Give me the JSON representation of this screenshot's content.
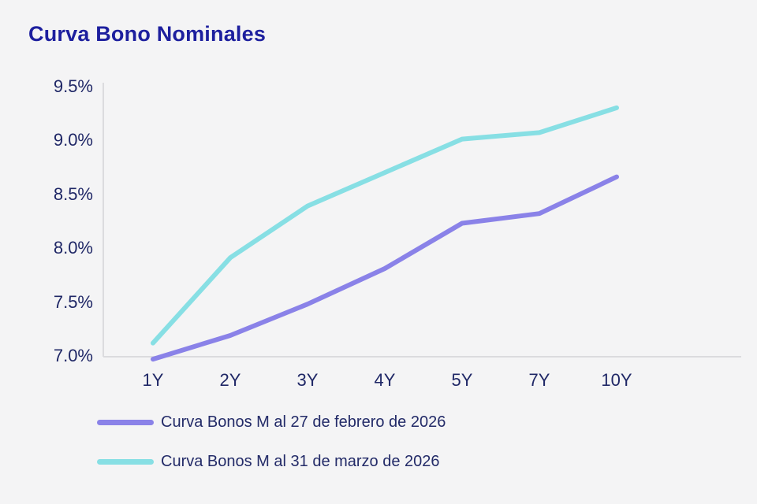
{
  "page": {
    "title": "Curva Bono Nominales"
  },
  "chart_data": {
    "type": "line",
    "title": "Curva Bono Nominales",
    "categories": [
      "1Y",
      "2Y",
      "3Y",
      "4Y",
      "5Y",
      "7Y",
      "10Y"
    ],
    "series": [
      {
        "name": "Curva Bonos M al 27 de febrero de 2026",
        "color": "#8a82e8",
        "values": [
          6.97,
          7.19,
          7.48,
          7.81,
          8.23,
          8.32,
          8.66
        ]
      },
      {
        "name": "Curva Bonos M al 31 de marzo de 2026",
        "color": "#87dfe4",
        "values": [
          7.12,
          7.91,
          8.39,
          8.7,
          9.01,
          9.07,
          9.3
        ]
      }
    ],
    "xlabel": "",
    "ylabel": "",
    "ylim": [
      7.0,
      9.5
    ],
    "y_ticks": [
      {
        "value": 7.0,
        "label": "7.0%"
      },
      {
        "value": 7.5,
        "label": "7.5%"
      },
      {
        "value": 8.0,
        "label": "8.0%"
      },
      {
        "value": 8.5,
        "label": "8.5%"
      },
      {
        "value": 9.0,
        "label": "9.0%"
      },
      {
        "value": 9.5,
        "label": "9.5%"
      }
    ],
    "grid": false,
    "legend_position": "bottom-left",
    "colors": {
      "title": "#1d1f9e",
      "axis_tick_labels": "#1f2766",
      "axis_line": "#dbdbde",
      "background": "#f4f4f5"
    }
  }
}
